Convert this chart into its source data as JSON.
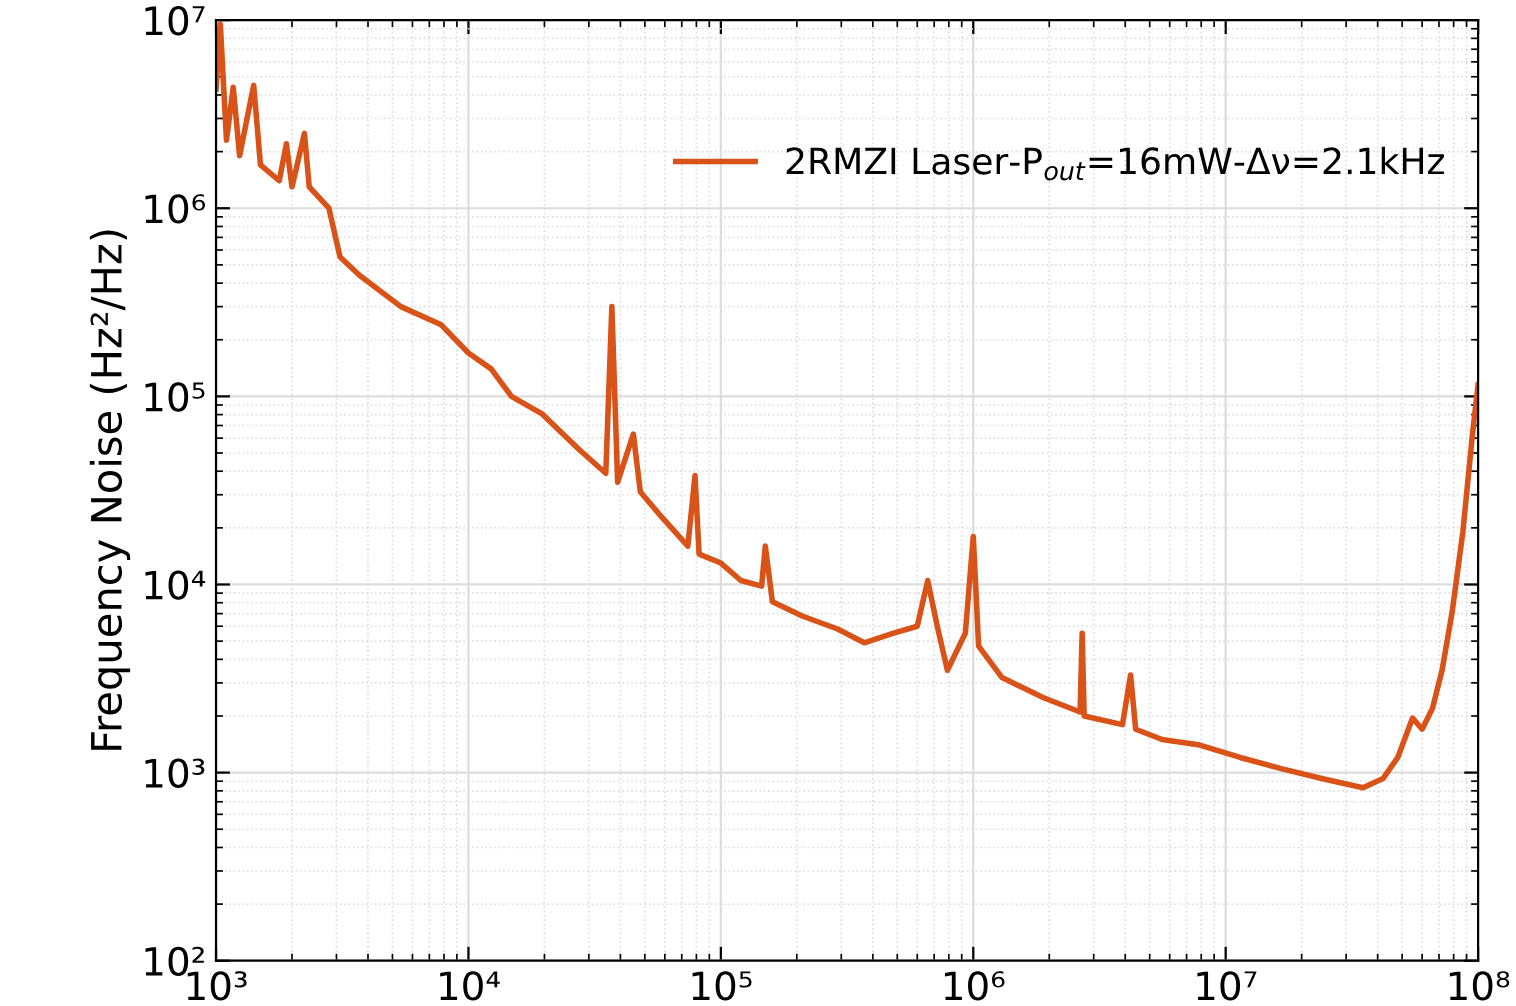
{
  "chart_data": {
    "type": "line",
    "ylabel": "Frequency Noise (Hz²/Hz)",
    "x": [
      1000,
      1040,
      1100,
      1170,
      1240,
      1410,
      1500,
      1780,
      1900,
      2000,
      2240,
      2340,
      2800,
      3100,
      3700,
      5400,
      7800,
      10000,
      12300,
      14800,
      19500,
      27500,
      35000,
      37000,
      39000,
      45000,
      48000,
      58000,
      74000,
      79000,
      82000,
      100000,
      120000,
      145000,
      150000,
      160000,
      210000,
      290000,
      370000,
      480000,
      600000,
      660000,
      720000,
      790000,
      930000,
      1000000,
      1050000,
      1300000,
      1900000,
      2650000,
      2700000,
      2750000,
      3900000,
      4200000,
      4400000,
      5600000,
      7900000,
      11500000,
      16600000,
      24000000,
      35000000,
      42000000,
      48000000,
      55000000,
      60000000,
      66000000,
      72000000,
      79000000,
      87000000,
      95000000,
      100000000
    ],
    "series": [
      {
        "name": "2RMZI Laser-P$_{out}$=16mW-Δν=2.1kHz",
        "color": "#d95319",
        "values": [
          4300000,
          9500000,
          2300000,
          4400000,
          1900000,
          4500000,
          1700000,
          1400000,
          2200000,
          1300000,
          2500000,
          1300000,
          1000000,
          550000,
          440000,
          300000,
          240000,
          170000,
          140000,
          100000,
          81000,
          52000,
          39000,
          300000,
          35000,
          63000,
          31000,
          23000,
          16000,
          38000,
          14500,
          13000,
          10500,
          9800,
          16000,
          8100,
          6800,
          5800,
          4900,
          5500,
          6000,
          10500,
          6000,
          3500,
          5500,
          18000,
          4700,
          3200,
          2500,
          2100,
          5500,
          2000,
          1800,
          3300,
          1700,
          1500,
          1400,
          1200,
          1050,
          930,
          830,
          930,
          1200,
          1950,
          1700,
          2200,
          3500,
          7200,
          19000,
          63000,
          115000
        ]
      }
    ],
    "log": "xy",
    "xlim": [
      1000,
      100000000
    ],
    "ylim": [
      100,
      10000000
    ],
    "xticks": [
      {
        "value": 1000,
        "label": "10³"
      },
      {
        "value": 10000,
        "label": "10⁴"
      },
      {
        "value": 100000,
        "label": "10⁵"
      },
      {
        "value": 1000000,
        "label": "10⁶"
      },
      {
        "value": 10000000,
        "label": "10⁷"
      },
      {
        "value": 100000000,
        "label": "10⁸"
      }
    ],
    "yticks": [
      {
        "value": 100,
        "label": "10²"
      },
      {
        "value": 1000,
        "label": "10³"
      },
      {
        "value": 10000,
        "label": "10⁴"
      },
      {
        "value": 100000,
        "label": "10⁵"
      },
      {
        "value": 1000000,
        "label": "10⁶"
      },
      {
        "value": 10000000,
        "label": "10⁷"
      }
    ],
    "grid": true,
    "legend": "top right",
    "line_style": "solid"
  }
}
